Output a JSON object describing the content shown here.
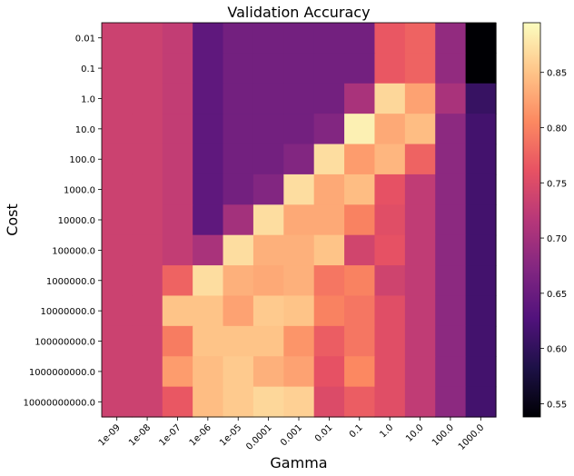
{
  "chart_data": {
    "type": "heatmap",
    "title": "Validation Accuracy",
    "xlabel": "Gamma",
    "ylabel": "Cost",
    "x_categories": [
      "1e-09",
      "1e-08",
      "1e-07",
      "1e-06",
      "1e-05",
      "0.0001",
      "0.001",
      "0.01",
      "0.1",
      "1.0",
      "10.0",
      "100.0",
      "1000.0"
    ],
    "y_categories": [
      "0.01",
      "0.1",
      "1.0",
      "10.0",
      "100.0",
      "1000.0",
      "10000.0",
      "100000.0",
      "1000000.0",
      "10000000.0",
      "100000000.0",
      "1000000000.0",
      "10000000000.0"
    ],
    "values": [
      [
        0.735,
        0.735,
        0.727,
        0.64,
        0.658,
        0.658,
        0.658,
        0.658,
        0.658,
        0.765,
        0.775,
        0.685,
        0.538
      ],
      [
        0.735,
        0.735,
        0.727,
        0.64,
        0.658,
        0.658,
        0.658,
        0.658,
        0.658,
        0.765,
        0.775,
        0.685,
        0.538
      ],
      [
        0.735,
        0.735,
        0.727,
        0.64,
        0.658,
        0.658,
        0.658,
        0.658,
        0.705,
        0.865,
        0.825,
        0.705,
        0.605
      ],
      [
        0.735,
        0.735,
        0.727,
        0.64,
        0.658,
        0.658,
        0.658,
        0.672,
        0.885,
        0.83,
        0.845,
        0.68,
        0.615
      ],
      [
        0.735,
        0.735,
        0.727,
        0.64,
        0.658,
        0.658,
        0.672,
        0.87,
        0.82,
        0.84,
        0.775,
        0.68,
        0.615
      ],
      [
        0.735,
        0.735,
        0.727,
        0.64,
        0.658,
        0.672,
        0.87,
        0.83,
        0.845,
        0.76,
        0.725,
        0.68,
        0.615
      ],
      [
        0.735,
        0.735,
        0.727,
        0.64,
        0.7,
        0.87,
        0.83,
        0.83,
        0.8,
        0.755,
        0.725,
        0.68,
        0.615
      ],
      [
        0.735,
        0.735,
        0.727,
        0.705,
        0.87,
        0.835,
        0.835,
        0.85,
        0.74,
        0.76,
        0.725,
        0.68,
        0.615
      ],
      [
        0.735,
        0.735,
        0.775,
        0.87,
        0.835,
        0.83,
        0.835,
        0.79,
        0.8,
        0.738,
        0.725,
        0.68,
        0.615
      ],
      [
        0.735,
        0.735,
        0.85,
        0.85,
        0.825,
        0.855,
        0.85,
        0.8,
        0.79,
        0.755,
        0.725,
        0.68,
        0.615
      ],
      [
        0.735,
        0.735,
        0.795,
        0.85,
        0.85,
        0.85,
        0.815,
        0.77,
        0.79,
        0.755,
        0.725,
        0.68,
        0.615
      ],
      [
        0.735,
        0.735,
        0.82,
        0.845,
        0.855,
        0.835,
        0.825,
        0.76,
        0.805,
        0.755,
        0.725,
        0.68,
        0.615
      ],
      [
        0.735,
        0.735,
        0.765,
        0.845,
        0.855,
        0.865,
        0.86,
        0.75,
        0.77,
        0.755,
        0.725,
        0.68,
        0.615
      ]
    ],
    "colormap": "magma",
    "vmin": 0.538,
    "vmax": 0.895,
    "colorbar_ticks": [
      "0.55",
      "0.60",
      "0.65",
      "0.70",
      "0.75",
      "0.80",
      "0.85"
    ],
    "colorbar_tick_values": [
      0.55,
      0.6,
      0.65,
      0.7,
      0.75,
      0.8,
      0.85
    ],
    "grid": false,
    "colorbar_position": "right"
  }
}
